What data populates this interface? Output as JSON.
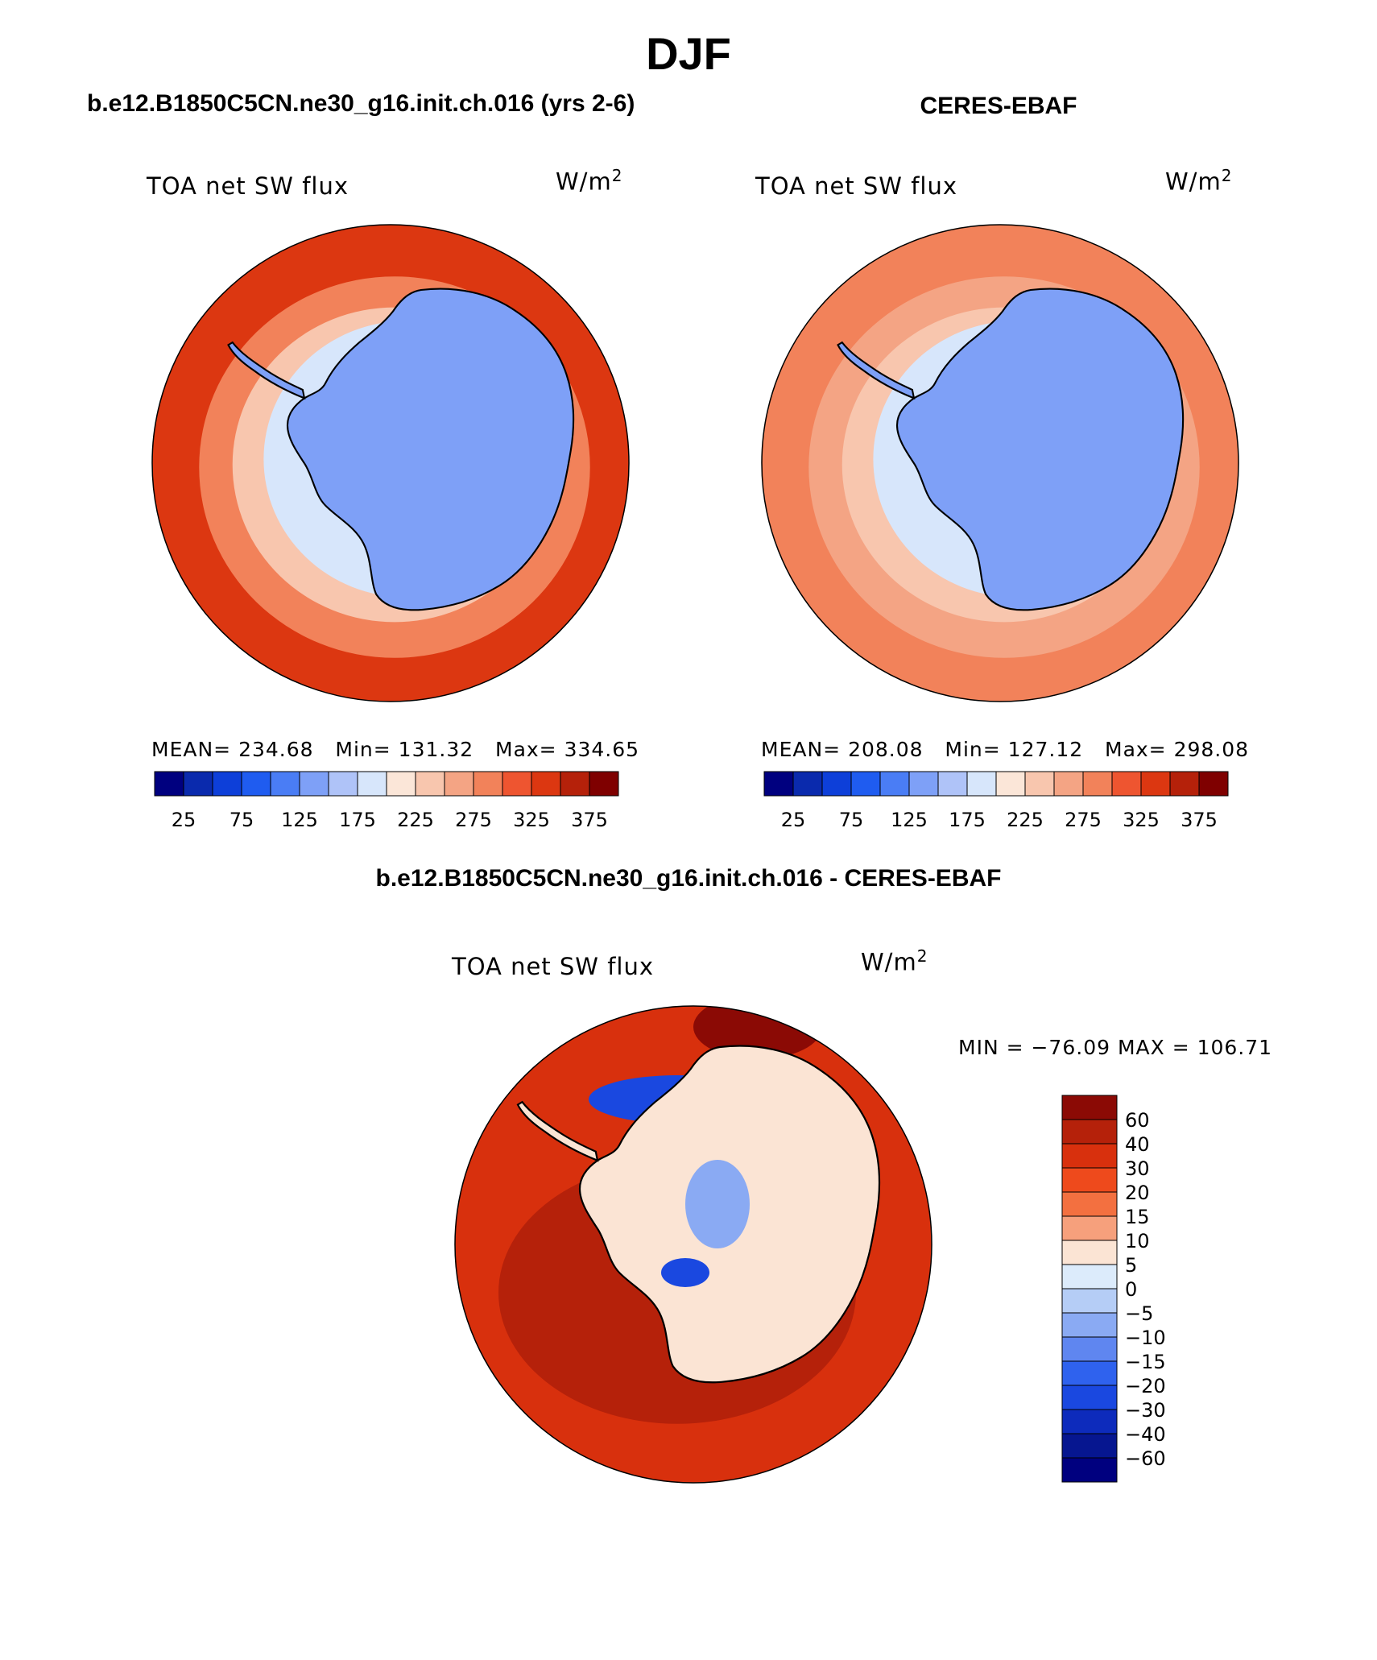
{
  "season": "DJF",
  "left_panel": {
    "case_title": "b.e12.B1850C5CN.ne30_g16.init.ch.016 (yrs 2-6)",
    "variable": "TOA net SW flux",
    "units_base": "W/m",
    "units_exp": "2",
    "mean_label": "MEAN=",
    "mean": "234.68",
    "min_label": "Min=",
    "min": "131.32",
    "max_label": "Max=",
    "max": "334.65",
    "map_levels": {
      "ocean_outer": 325,
      "ocean_mid": 275,
      "sea_ice_zone": 225,
      "near_coast": 175,
      "continent": 125
    }
  },
  "right_panel": {
    "case_title": "CERES-EBAF",
    "variable": "TOA net SW flux",
    "units_base": "W/m",
    "units_exp": "2",
    "mean_label": "MEAN=",
    "mean": "208.08",
    "min_label": "Min=",
    "min": "127.12",
    "max_label": "Max=",
    "max": "298.08",
    "map_levels": {
      "ocean_outer": 275,
      "ocean_mid": 250,
      "sea_ice_zone": 225,
      "near_coast": 175,
      "continent": 125
    }
  },
  "horizontal_colorbar": {
    "colors": [
      "#00007f",
      "#0a2aad",
      "#0d3fd9",
      "#1f5cf0",
      "#4a7df5",
      "#7ea0f7",
      "#afc3f8",
      "#d7e6fb",
      "#fbe6d8",
      "#f8c6ae",
      "#f4a484",
      "#f2825a",
      "#ee5530",
      "#dc3711",
      "#b5210a",
      "#7f0000"
    ],
    "tick_labels": [
      "25",
      "75",
      "125",
      "175",
      "225",
      "275",
      "325",
      "375"
    ]
  },
  "diff_panel": {
    "title": "b.e12.B1850C5CN.ne30_g16.init.ch.016 - CERES-EBAF",
    "variable": "TOA net SW flux",
    "units_base": "W/m",
    "units_exp": "2",
    "minmax_text": "MIN = −76.09 MAX = 106.71",
    "colorbar_colors_top_to_bottom": [
      "#8b0a05",
      "#b5210a",
      "#d8300d",
      "#ee4a1c",
      "#f37040",
      "#f6a07c",
      "#fbe4d4",
      "#dcebfb",
      "#b5cdf6",
      "#8aaaf3",
      "#5f86f0",
      "#2f62ee",
      "#1a48e0",
      "#0d2bbc",
      "#061690",
      "#00007f"
    ],
    "colorbar_labels": [
      "60",
      "40",
      "30",
      "20",
      "15",
      "10",
      "5",
      "0",
      "−5",
      "−10",
      "−15",
      "−20",
      "−30",
      "−40",
      "−60"
    ]
  },
  "chart_data": [
    {
      "type": "heatmap",
      "title": "TOA net SW flux",
      "subtitle": "b.e12.B1850C5CN.ne30_g16.init.ch.016 (yrs 2-6)",
      "units": "W/m2",
      "projection": "south polar stereographic",
      "stats": {
        "mean": 234.68,
        "min": 131.32,
        "max": 334.65
      },
      "levels": [
        25,
        50,
        75,
        100,
        125,
        150,
        175,
        200,
        225,
        250,
        275,
        300,
        325,
        350,
        375
      ]
    },
    {
      "type": "heatmap",
      "title": "TOA net SW flux",
      "subtitle": "CERES-EBAF",
      "units": "W/m2",
      "projection": "south polar stereographic",
      "stats": {
        "mean": 208.08,
        "min": 127.12,
        "max": 298.08
      },
      "levels": [
        25,
        50,
        75,
        100,
        125,
        150,
        175,
        200,
        225,
        250,
        275,
        300,
        325,
        350,
        375
      ]
    },
    {
      "type": "heatmap",
      "title": "TOA net SW flux",
      "subtitle": "b.e12.B1850C5CN.ne30_g16.init.ch.016 - CERES-EBAF",
      "units": "W/m2",
      "projection": "south polar stereographic",
      "stats": {
        "min": -76.09,
        "max": 106.71
      },
      "levels": [
        -60,
        -40,
        -30,
        -20,
        -15,
        -10,
        -5,
        0,
        5,
        10,
        15,
        20,
        30,
        40,
        60
      ]
    }
  ]
}
